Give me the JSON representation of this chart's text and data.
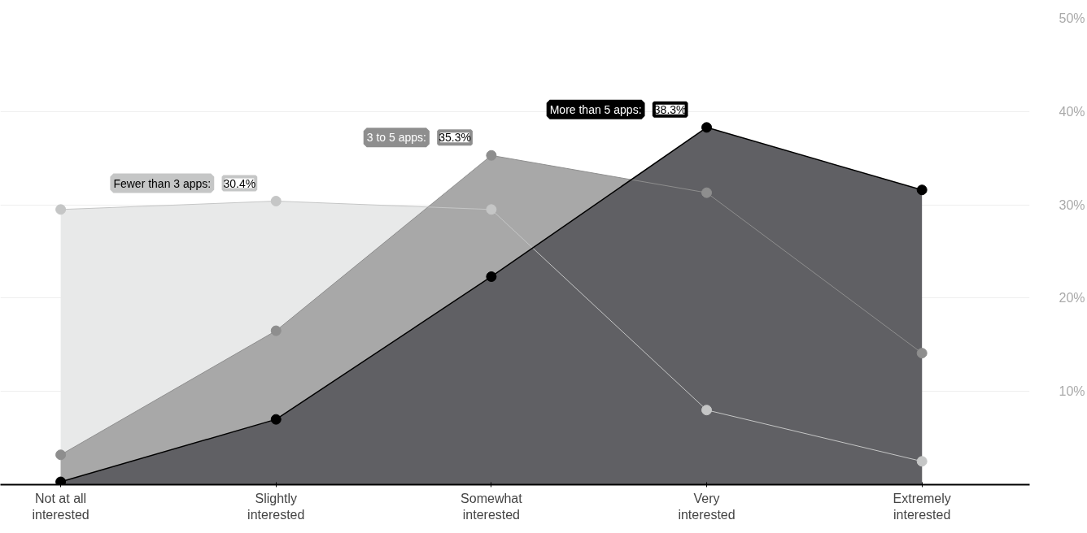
{
  "chart_data": {
    "type": "area",
    "categories": [
      "Not at all interested",
      "Slightly interested",
      "Somewhat interested",
      "Very interested",
      "Extremely interested"
    ],
    "series": [
      {
        "name": "Fewer than 3 apps:",
        "color": "#e8e9e9",
        "values": [
          29.5,
          30.4,
          29.5,
          8.0,
          2.5
        ],
        "value_labels": [
          null,
          "30.4%",
          null,
          null,
          null
        ]
      },
      {
        "name": "3 to 5 apps:",
        "color": "#a8a8a8",
        "values": [
          3.2,
          16.5,
          35.3,
          31.3,
          14.1
        ],
        "value_labels": [
          null,
          null,
          "35.3%",
          null,
          null
        ]
      },
      {
        "name": "More than 5 apps:",
        "color": "#606064",
        "values": [
          0.3,
          7.0,
          22.3,
          38.3,
          31.6
        ],
        "value_labels": [
          null,
          null,
          null,
          "38.3%",
          null
        ]
      }
    ],
    "ylim": [
      0,
      50
    ],
    "yticks": [
      {
        "value": 10,
        "label": "10%"
      },
      {
        "value": 20,
        "label": "20%"
      },
      {
        "value": 30,
        "label": "30%"
      },
      {
        "value": 40,
        "label": "40%"
      },
      {
        "value": 50,
        "label": "50%"
      }
    ],
    "grid": "y",
    "marker": "circle",
    "legend": "top"
  }
}
